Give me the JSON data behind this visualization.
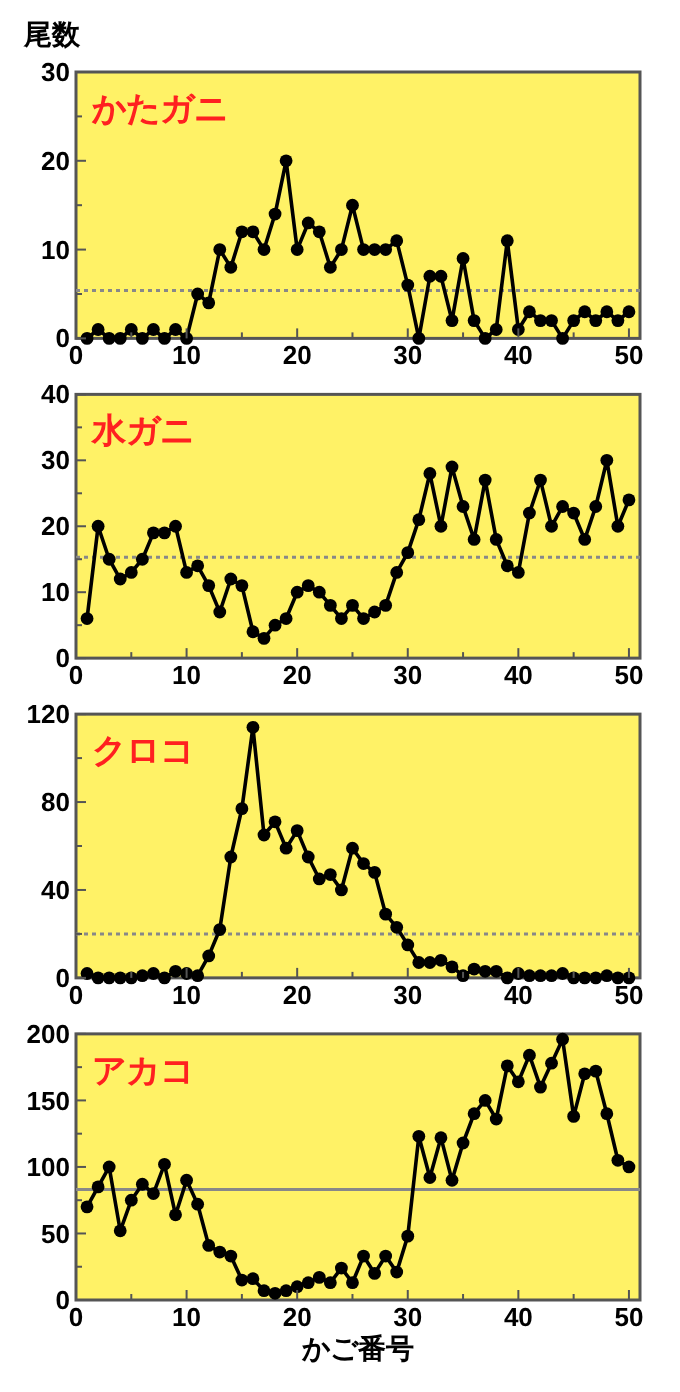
{
  "chart_data": [
    {
      "type": "line",
      "title": "かたガニ",
      "ylabel": "尾数",
      "x": [
        1,
        2,
        3,
        4,
        5,
        6,
        7,
        8,
        9,
        10,
        11,
        12,
        13,
        14,
        15,
        16,
        17,
        18,
        19,
        20,
        21,
        22,
        23,
        24,
        25,
        26,
        27,
        28,
        29,
        30,
        31,
        32,
        33,
        34,
        35,
        36,
        37,
        38,
        39,
        40,
        41,
        42,
        43,
        44,
        45,
        46,
        47,
        48,
        49,
        50
      ],
      "series": [
        {
          "color": "#000000",
          "values": [
            0,
            1,
            0,
            0,
            1,
            0,
            1,
            0,
            1,
            0,
            5,
            4,
            10,
            8,
            12,
            12,
            10,
            14,
            20,
            10,
            13,
            12,
            8,
            10,
            15,
            10,
            10,
            10,
            11,
            6,
            0,
            7,
            7,
            2,
            9,
            2,
            0,
            1,
            11,
            1,
            3,
            2,
            2,
            0,
            2,
            3,
            2,
            3,
            2,
            3
          ]
        }
      ],
      "xlim": [
        0,
        51
      ],
      "xticks": [
        0,
        {
          "value": 5,
          "label": null
        },
        10,
        {
          "value": 15,
          "label": null
        },
        20,
        {
          "value": 25,
          "label": null
        },
        30,
        {
          "value": 35,
          "label": null
        },
        40,
        {
          "value": 45,
          "label": null
        },
        50
      ],
      "ylim": [
        0,
        30
      ],
      "yticks": [
        0,
        {
          "value": 5,
          "label": null
        },
        10,
        {
          "value": 15,
          "label": null
        },
        20,
        {
          "value": 25,
          "label": null
        },
        30
      ],
      "ref_lines": [
        {
          "axis": "y",
          "value": 5.4,
          "color": "#888888",
          "line_style": "dotted"
        }
      ],
      "marker": "circle",
      "line_style": "solid"
    },
    {
      "type": "line",
      "title": "水ガニ",
      "x": [
        1,
        2,
        3,
        4,
        5,
        6,
        7,
        8,
        9,
        10,
        11,
        12,
        13,
        14,
        15,
        16,
        17,
        18,
        19,
        20,
        21,
        22,
        23,
        24,
        25,
        26,
        27,
        28,
        29,
        30,
        31,
        32,
        33,
        34,
        35,
        36,
        37,
        38,
        39,
        40,
        41,
        42,
        43,
        44,
        45,
        46,
        47,
        48,
        49,
        50
      ],
      "series": [
        {
          "color": "#000000",
          "values": [
            6,
            20,
            15,
            12,
            13,
            15,
            19,
            19,
            20,
            13,
            14,
            11,
            7,
            12,
            11,
            4,
            3,
            5,
            6,
            10,
            11,
            10,
            8,
            6,
            8,
            6,
            7,
            8,
            13,
            16,
            21,
            28,
            20,
            29,
            23,
            18,
            27,
            18,
            14,
            13,
            22,
            27,
            20,
            23,
            22,
            18,
            23,
            30,
            20,
            24
          ]
        }
      ],
      "xlim": [
        0,
        51
      ],
      "xticks": [
        0,
        {
          "value": 5,
          "label": null
        },
        10,
        {
          "value": 15,
          "label": null
        },
        20,
        {
          "value": 25,
          "label": null
        },
        30,
        {
          "value": 35,
          "label": null
        },
        40,
        {
          "value": 45,
          "label": null
        },
        50
      ],
      "ylim": [
        0,
        40
      ],
      "yticks": [
        0,
        {
          "value": 5,
          "label": null
        },
        10,
        {
          "value": 15,
          "label": null
        },
        20,
        {
          "value": 25,
          "label": null
        },
        30,
        {
          "value": 35,
          "label": null
        },
        40
      ],
      "ref_lines": [
        {
          "axis": "y",
          "value": 15.3,
          "color": "#888888",
          "line_style": "dotted"
        }
      ],
      "marker": "circle",
      "line_style": "solid"
    },
    {
      "type": "line",
      "title": "クロコ",
      "x": [
        1,
        2,
        3,
        4,
        5,
        6,
        7,
        8,
        9,
        10,
        11,
        12,
        13,
        14,
        15,
        16,
        17,
        18,
        19,
        20,
        21,
        22,
        23,
        24,
        25,
        26,
        27,
        28,
        29,
        30,
        31,
        32,
        33,
        34,
        35,
        36,
        37,
        38,
        39,
        40,
        41,
        42,
        43,
        44,
        45,
        46,
        47,
        48,
        49,
        50
      ],
      "series": [
        {
          "color": "#000000",
          "values": [
            2,
            0,
            0,
            0,
            0,
            1,
            2,
            0,
            3,
            2,
            1,
            10,
            22,
            55,
            77,
            114,
            65,
            71,
            59,
            67,
            55,
            45,
            47,
            40,
            59,
            52,
            48,
            29,
            23,
            15,
            7,
            7,
            8,
            5,
            1,
            4,
            3,
            3,
            0,
            2,
            1,
            1,
            1,
            2,
            0,
            0,
            0,
            1,
            0,
            0
          ]
        }
      ],
      "xlim": [
        0,
        51
      ],
      "xticks": [
        0,
        {
          "value": 5,
          "label": null
        },
        10,
        {
          "value": 15,
          "label": null
        },
        20,
        {
          "value": 25,
          "label": null
        },
        30,
        {
          "value": 35,
          "label": null
        },
        40,
        {
          "value": 45,
          "label": null
        },
        50
      ],
      "ylim": [
        0,
        120
      ],
      "yticks": [
        0,
        {
          "value": 20,
          "label": null
        },
        40,
        {
          "value": 60,
          "label": null
        },
        80,
        {
          "value": 100,
          "label": null
        },
        120
      ],
      "ref_lines": [
        {
          "axis": "y",
          "value": 20,
          "color": "#888888",
          "line_style": "dotted"
        }
      ],
      "marker": "circle",
      "line_style": "solid"
    },
    {
      "type": "line",
      "title": "アカコ",
      "xlabel": "かご番号",
      "x": [
        1,
        2,
        3,
        4,
        5,
        6,
        7,
        8,
        9,
        10,
        11,
        12,
        13,
        14,
        15,
        16,
        17,
        18,
        19,
        20,
        21,
        22,
        23,
        24,
        25,
        26,
        27,
        28,
        29,
        30,
        31,
        32,
        33,
        34,
        35,
        36,
        37,
        38,
        39,
        40,
        41,
        42,
        43,
        44,
        45,
        46,
        47,
        48,
        49,
        50
      ],
      "series": [
        {
          "color": "#000000",
          "values": [
            70,
            85,
            100,
            52,
            75,
            87,
            80,
            102,
            64,
            90,
            72,
            41,
            36,
            33,
            15,
            16,
            7,
            5,
            7,
            10,
            13,
            17,
            13,
            24,
            13,
            33,
            20,
            33,
            21,
            48,
            123,
            92,
            122,
            90,
            118,
            140,
            150,
            136,
            176,
            164,
            184,
            160,
            178,
            196,
            138,
            170,
            172,
            140,
            105,
            100
          ]
        }
      ],
      "xlim": [
        0,
        51
      ],
      "xticks": [
        0,
        {
          "value": 5,
          "label": null
        },
        10,
        {
          "value": 15,
          "label": null
        },
        20,
        {
          "value": 25,
          "label": null
        },
        30,
        {
          "value": 35,
          "label": null
        },
        40,
        {
          "value": 45,
          "label": null
        },
        50
      ],
      "ylim": [
        0,
        200
      ],
      "yticks": [
        0,
        {
          "value": 25,
          "label": null
        },
        50,
        {
          "value": 75,
          "label": null
        },
        100,
        {
          "value": 125,
          "label": null
        },
        150,
        {
          "value": 175,
          "label": null
        },
        200
      ],
      "ref_lines": [
        {
          "axis": "y",
          "value": 83,
          "color": "#888888",
          "line_style": "solid"
        }
      ],
      "marker": "circle",
      "line_style": "solid"
    }
  ]
}
